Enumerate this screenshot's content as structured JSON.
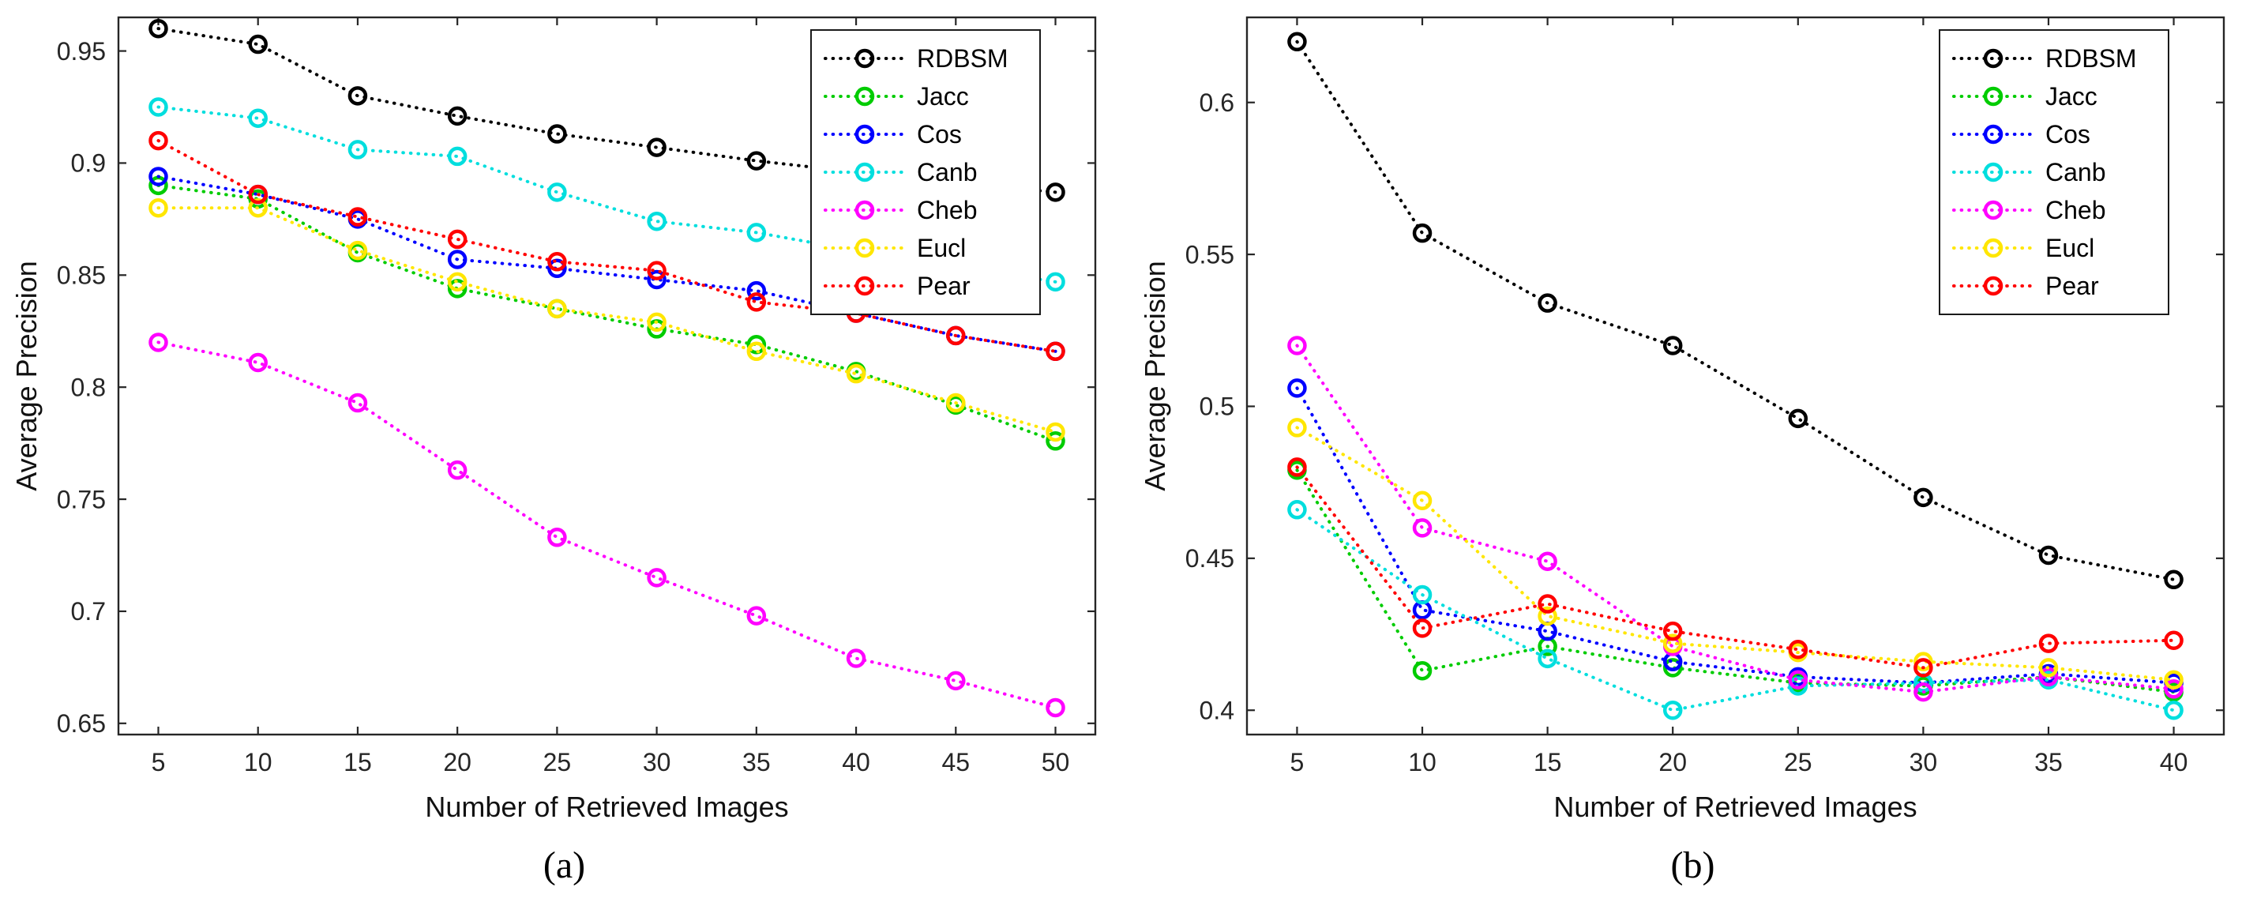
{
  "page": {
    "background": "#ffffff"
  },
  "legend": {
    "position": "top-right",
    "entries": [
      "RDBSM",
      "Jacc",
      "Cos",
      "Canb",
      "Cheb",
      "Eucl",
      "Pear"
    ]
  },
  "chart_data": [
    {
      "id": "a",
      "type": "line",
      "caption": "(a)",
      "title": "",
      "xlabel": "Number of Retrieved Images",
      "ylabel": "Average Precision",
      "line_style": "dotted",
      "marker": "open-circle",
      "grid": false,
      "axis_color": "#262626",
      "legend_position": "top-right",
      "x": [
        5,
        10,
        15,
        20,
        25,
        30,
        35,
        40,
        45,
        50
      ],
      "xlim": [
        3,
        52
      ],
      "ylim": [
        0.645,
        0.965
      ],
      "xticks": [
        5,
        10,
        15,
        20,
        25,
        30,
        35,
        40,
        45,
        50
      ],
      "xtick_labels": [
        "5",
        "10",
        "15",
        "20",
        "25",
        "30",
        "35",
        "40",
        "45",
        "50"
      ],
      "yticks": [
        0.65,
        0.7,
        0.75,
        0.8,
        0.85,
        0.9,
        0.95
      ],
      "ytick_labels": [
        "0.65",
        "0.7",
        "0.75",
        "0.8",
        "0.85",
        "0.9",
        "0.95"
      ],
      "series": [
        {
          "name": "RDBSM",
          "color": "#000000",
          "values": [
            0.96,
            0.953,
            0.93,
            0.921,
            0.913,
            0.907,
            0.901,
            0.896,
            0.891,
            0.887
          ]
        },
        {
          "name": "Jacc",
          "color": "#00cc00",
          "values": [
            0.89,
            0.884,
            0.86,
            0.844,
            0.835,
            0.826,
            0.819,
            0.807,
            0.792,
            0.776
          ]
        },
        {
          "name": "Cos",
          "color": "#0000ff",
          "values": [
            0.894,
            0.886,
            0.875,
            0.857,
            0.853,
            0.848,
            0.843,
            0.833,
            0.823,
            0.816
          ]
        },
        {
          "name": "Canb",
          "color": "#00dede",
          "values": [
            0.925,
            0.92,
            0.906,
            0.903,
            0.887,
            0.874,
            0.869,
            0.861,
            0.854,
            0.847
          ]
        },
        {
          "name": "Cheb",
          "color": "#ff00ff",
          "values": [
            0.82,
            0.811,
            0.793,
            0.763,
            0.733,
            0.715,
            0.698,
            0.679,
            0.669,
            0.657
          ]
        },
        {
          "name": "Eucl",
          "color": "#ffe600",
          "values": [
            0.88,
            0.88,
            0.861,
            0.847,
            0.835,
            0.829,
            0.816,
            0.806,
            0.793,
            0.78
          ]
        },
        {
          "name": "Pear",
          "color": "#ff0000",
          "values": [
            0.91,
            0.886,
            0.876,
            0.866,
            0.856,
            0.852,
            0.838,
            0.833,
            0.823,
            0.816
          ]
        }
      ]
    },
    {
      "id": "b",
      "type": "line",
      "caption": "(b)",
      "title": "",
      "xlabel": "Number of Retrieved Images",
      "ylabel": "Average Precision",
      "line_style": "dotted",
      "marker": "open-circle",
      "grid": false,
      "axis_color": "#262626",
      "legend_position": "top-right",
      "x": [
        5,
        10,
        15,
        20,
        25,
        30,
        35,
        40
      ],
      "xlim": [
        3,
        42
      ],
      "ylim": [
        0.392,
        0.628
      ],
      "xticks": [
        5,
        10,
        15,
        20,
        25,
        30,
        35,
        40
      ],
      "xtick_labels": [
        "5",
        "10",
        "15",
        "20",
        "25",
        "30",
        "35",
        "40"
      ],
      "yticks": [
        0.4,
        0.45,
        0.5,
        0.55,
        0.6
      ],
      "ytick_labels": [
        "0.4",
        "0.45",
        "0.5",
        "0.55",
        "0.6"
      ],
      "series": [
        {
          "name": "RDBSM",
          "color": "#000000",
          "values": [
            0.62,
            0.557,
            0.534,
            0.52,
            0.496,
            0.47,
            0.451,
            0.443
          ]
        },
        {
          "name": "Jacc",
          "color": "#00cc00",
          "values": [
            0.479,
            0.413,
            0.421,
            0.414,
            0.409,
            0.408,
            0.411,
            0.406
          ]
        },
        {
          "name": "Cos",
          "color": "#0000ff",
          "values": [
            0.506,
            0.433,
            0.426,
            0.416,
            0.411,
            0.409,
            0.412,
            0.409
          ]
        },
        {
          "name": "Canb",
          "color": "#00dede",
          "values": [
            0.466,
            0.438,
            0.417,
            0.4,
            0.408,
            0.409,
            0.41,
            0.4
          ]
        },
        {
          "name": "Cheb",
          "color": "#ff00ff",
          "values": [
            0.52,
            0.46,
            0.449,
            0.421,
            0.41,
            0.406,
            0.411,
            0.407
          ]
        },
        {
          "name": "Eucl",
          "color": "#ffe600",
          "values": [
            0.493,
            0.469,
            0.431,
            0.422,
            0.419,
            0.416,
            0.414,
            0.41
          ]
        },
        {
          "name": "Pear",
          "color": "#ff0000",
          "values": [
            0.48,
            0.427,
            0.435,
            0.426,
            0.42,
            0.414,
            0.422,
            0.423
          ]
        }
      ]
    }
  ]
}
